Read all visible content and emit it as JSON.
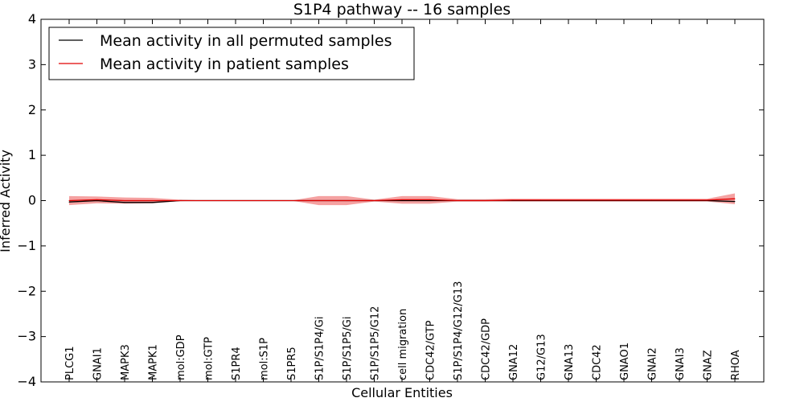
{
  "chart_data": {
    "type": "line",
    "title": "S1P4 pathway -- 16 samples",
    "xlabel": "Cellular Entities",
    "ylabel": "Inferred Activity",
    "ylim": [
      -4,
      4
    ],
    "yticks": [
      "4",
      "3",
      "2",
      "1",
      "0",
      "−1",
      "−2",
      "−3",
      "−4"
    ],
    "ytick_values": [
      4,
      3,
      2,
      1,
      0,
      -1,
      -2,
      -3,
      -4
    ],
    "categories": [
      "PLCG1",
      "GNAI1",
      "MAPK3",
      "MAPK1",
      "mol:GDP",
      "mol:GTP",
      "S1PR4",
      "mol:S1P",
      "S1PR5",
      "S1P/S1P4/Gi",
      "S1P/S1P5/Gi",
      "S1P/S1P5/G12",
      "cell migration",
      "CDC42/GTP",
      "S1P/S1P4/G12/G13",
      "CDC42/GDP",
      "GNA12",
      "G12/G13",
      "GNA13",
      "CDC42",
      "GNAO1",
      "GNAI2",
      "GNAI3",
      "GNAZ",
      "RHOA"
    ],
    "legend_position": "top-left",
    "series": [
      {
        "name": "Mean activity in all permuted samples",
        "color": "#000000",
        "values": [
          -0.03,
          0.0,
          -0.04,
          -0.04,
          0.0,
          0.0,
          0.0,
          0.0,
          0.0,
          0.0,
          0.0,
          0.0,
          0.0,
          0.0,
          0.0,
          0.0,
          0.0,
          0.0,
          0.0,
          0.0,
          0.0,
          0.0,
          0.0,
          0.0,
          -0.02
        ],
        "band_lower": [
          -0.04,
          -0.03,
          -0.06,
          -0.06,
          -0.01,
          0.0,
          0.0,
          0.0,
          0.0,
          -0.01,
          -0.01,
          0.0,
          -0.02,
          -0.02,
          0.0,
          -0.01,
          -0.01,
          -0.01,
          -0.01,
          -0.01,
          -0.01,
          -0.01,
          -0.01,
          -0.01,
          -0.04
        ],
        "band_upper": [
          0.01,
          0.02,
          0.0,
          0.0,
          0.01,
          0.0,
          0.0,
          0.0,
          0.0,
          0.01,
          0.01,
          0.0,
          0.02,
          0.02,
          0.0,
          0.01,
          0.01,
          0.01,
          0.01,
          0.01,
          0.01,
          0.01,
          0.01,
          0.01,
          0.02
        ],
        "band_color": "#cccccc"
      },
      {
        "name": "Mean activity in patient samples",
        "color": "#e00000",
        "values": [
          0.0,
          0.02,
          0.0,
          0.0,
          0.0,
          0.0,
          0.0,
          0.0,
          0.0,
          0.0,
          0.0,
          0.0,
          0.02,
          0.02,
          0.0,
          0.0,
          0.01,
          0.01,
          0.01,
          0.01,
          0.01,
          0.01,
          0.01,
          0.01,
          0.04
        ],
        "band_lower": [
          -0.1,
          -0.06,
          -0.07,
          -0.06,
          -0.01,
          0.0,
          0.0,
          0.0,
          0.0,
          -0.1,
          -0.1,
          -0.02,
          -0.07,
          -0.07,
          -0.02,
          -0.02,
          -0.02,
          -0.02,
          -0.02,
          -0.02,
          -0.02,
          -0.02,
          -0.02,
          -0.02,
          -0.08
        ],
        "band_upper": [
          0.1,
          0.09,
          0.07,
          0.06,
          0.02,
          0.0,
          0.0,
          0.0,
          0.0,
          0.1,
          0.1,
          0.02,
          0.1,
          0.1,
          0.03,
          0.03,
          0.04,
          0.04,
          0.04,
          0.04,
          0.04,
          0.04,
          0.04,
          0.04,
          0.16
        ],
        "band_color": "#f07070"
      }
    ]
  }
}
